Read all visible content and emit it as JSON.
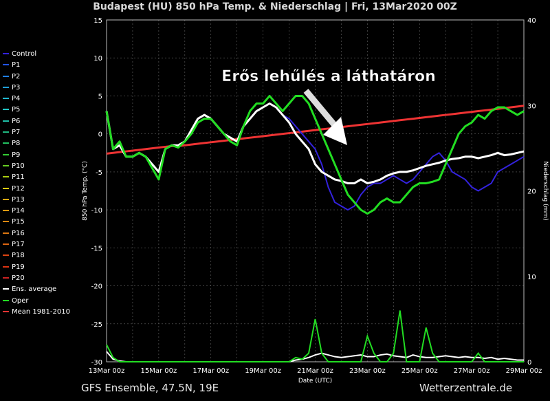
{
  "title": "Budapest  (HU)  850 hPa Temp. & Niederschlag | Fri, 13Mar2020 00Z",
  "footer": {
    "left": "GFS Ensemble, 47.5N, 19E",
    "right": "Wetterzentrale.de"
  },
  "legend": [
    {
      "label": "Control",
      "color": "#3322dd"
    },
    {
      "label": "P1",
      "color": "#2255ee"
    },
    {
      "label": "P2",
      "color": "#1f7fe8"
    },
    {
      "label": "P3",
      "color": "#1f9fd8"
    },
    {
      "label": "P4",
      "color": "#20b8d0"
    },
    {
      "label": "P5",
      "color": "#22c8c8"
    },
    {
      "label": "P6",
      "color": "#1fc0a8"
    },
    {
      "label": "P7",
      "color": "#1fb880"
    },
    {
      "label": "P8",
      "color": "#22c060"
    },
    {
      "label": "P9",
      "color": "#33cc33"
    },
    {
      "label": "P10",
      "color": "#66cc22"
    },
    {
      "label": "P11",
      "color": "#aacc11"
    },
    {
      "label": "P12",
      "color": "#ddcc11"
    },
    {
      "label": "P13",
      "color": "#ddaa11"
    },
    {
      "label": "P14",
      "color": "#dd9911"
    },
    {
      "label": "P15",
      "color": "#dd8811"
    },
    {
      "label": "P16",
      "color": "#dd7711"
    },
    {
      "label": "P17",
      "color": "#dd6611"
    },
    {
      "label": "P18",
      "color": "#dd4411"
    },
    {
      "label": "P19",
      "color": "#dd3311"
    },
    {
      "label": "P20",
      "color": "#cc2222"
    },
    {
      "label": "Ens. average",
      "color": "#ffffff"
    },
    {
      "label": "Oper",
      "color": "#22dd22"
    },
    {
      "label": "Mean 1981-2010",
      "color": "#ee3333"
    }
  ],
  "chart_data": {
    "type": "line",
    "annotation": "Erős lehűlés a láthatáron",
    "xlabel": "Date (UTC)",
    "ylabel": "850 hPa Temp. (°C)",
    "y2label": "Niederschlag (mm)",
    "x_ticks": [
      "13Mar 00z",
      "15Mar 00z",
      "17Mar 00z",
      "19Mar 00z",
      "21Mar 00z",
      "23Mar 00z",
      "25Mar 00z",
      "27Mar 00z",
      "29Mar 00z"
    ],
    "x_range_days": [
      0,
      16
    ],
    "ylim": [
      -30,
      15
    ],
    "y_ticks": [
      15,
      10,
      5,
      0,
      -5,
      -10,
      -15,
      -20,
      -25,
      -30
    ],
    "y2lim": [
      0,
      40
    ],
    "y2_ticks": [
      40,
      30,
      20,
      10,
      0
    ],
    "grid": true,
    "legend_position": "left",
    "x_days": [
      0,
      0.25,
      0.5,
      0.75,
      1,
      1.25,
      1.5,
      1.75,
      2,
      2.25,
      2.5,
      2.75,
      3,
      3.25,
      3.5,
      3.75,
      4,
      4.25,
      4.5,
      4.75,
      5,
      5.25,
      5.5,
      5.75,
      6,
      6.25,
      6.5,
      6.75,
      7,
      7.25,
      7.5,
      7.75,
      8,
      8.25,
      8.5,
      8.75,
      9,
      9.25,
      9.5,
      9.75,
      10,
      10.25,
      10.5,
      10.75,
      11,
      11.25,
      11.5,
      11.75,
      12,
      12.25,
      12.5,
      12.75,
      13,
      13.25,
      13.5,
      13.75,
      14,
      14.25,
      14.5,
      14.75,
      15,
      15.25,
      15.5,
      15.75,
      16
    ],
    "series": [
      {
        "name": "Ens. average",
        "values": [
          3,
          -2,
          -1.5,
          -3,
          -3,
          -2.5,
          -3,
          -4,
          -5,
          -2,
          -1.5,
          -1.5,
          -1,
          0.5,
          2,
          2.5,
          2,
          1,
          0,
          -0.5,
          -1,
          1,
          2,
          3,
          3.5,
          4,
          3.5,
          2.5,
          1.5,
          0,
          -1,
          -2,
          -4,
          -5,
          -5.5,
          -6,
          -6.2,
          -6.5,
          -6.5,
          -6,
          -6.5,
          -6.3,
          -6,
          -5.5,
          -5.2,
          -5,
          -5,
          -4.8,
          -4.5,
          -4.2,
          -4,
          -3.8,
          -3.5,
          -3.3,
          -3.2,
          -3,
          -3,
          -3.2,
          -3,
          -2.8,
          -2.5,
          -2.8,
          -2.7,
          -2.5,
          -2.3
        ]
      },
      {
        "name": "Oper",
        "values": [
          3,
          -2,
          -1,
          -3,
          -3,
          -2.5,
          -3,
          -4.5,
          -6,
          -2,
          -1.5,
          -1.8,
          -1,
          0,
          1.5,
          2,
          2,
          1,
          0,
          -1,
          -1.5,
          1,
          3,
          4,
          4,
          5,
          4,
          3,
          4,
          5,
          5,
          4,
          2,
          0,
          -2,
          -4,
          -6,
          -8,
          -9,
          -10,
          -10.5,
          -10,
          -9,
          -8.5,
          -9,
          -9,
          -8,
          -7,
          -6.5,
          -6.5,
          -6.3,
          -6,
          -4,
          -2,
          0,
          1,
          1.5,
          2.5,
          2,
          3,
          3.5,
          3.5,
          3,
          2.5,
          3
        ]
      },
      {
        "name": "Control",
        "values": [
          3,
          -2,
          -1.5,
          -3,
          -3,
          -2.5,
          -3,
          -4,
          -5,
          -2,
          -1.5,
          -1.5,
          -1,
          0.5,
          2,
          2.5,
          2,
          1,
          0,
          -0.5,
          -1,
          1,
          2,
          3,
          3.5,
          4,
          3.5,
          2.5,
          2,
          1,
          0,
          -1,
          -2,
          -4,
          -7,
          -9,
          -9.5,
          -10,
          -9.5,
          -8,
          -7,
          -6.5,
          -6.5,
          -6,
          -5.5,
          -6,
          -6.5,
          -6,
          -5,
          -4,
          -3,
          -2.5,
          -3.5,
          -5,
          -5.5,
          -6,
          -7,
          -7.5,
          -7,
          -6.5,
          -5,
          -4.5,
          -4,
          -3.5,
          -3
        ]
      },
      {
        "name": "Mean 1981-2010",
        "values": [
          -2.6,
          -2.5,
          -2.4,
          -2.3,
          -2.2,
          -2.1,
          -2.0,
          -1.9,
          -1.8,
          -1.7,
          -1.6,
          -1.6,
          -1.5,
          -1.4,
          -1.3,
          -1.2,
          -1.1,
          -1.0,
          -0.9,
          -0.8,
          -0.7,
          -0.6,
          -0.5,
          -0.4,
          -0.3,
          -0.2,
          -0.1,
          0,
          0.1,
          0.2,
          0.3,
          0.4,
          0.5,
          0.6,
          0.7,
          0.8,
          0.9,
          1.0,
          1.1,
          1.2,
          1.3,
          1.4,
          1.5,
          1.6,
          1.7,
          1.8,
          1.9,
          2.0,
          2.1,
          2.2,
          2.3,
          2.4,
          2.5,
          2.6,
          2.7,
          2.8,
          2.9,
          3.0,
          3.1,
          3.2,
          3.3,
          3.4,
          3.5,
          3.6,
          3.7
        ]
      }
    ],
    "precip_series": [
      {
        "name": "Ens. average",
        "values": [
          1.2,
          0.3,
          0.1,
          0,
          0,
          0,
          0,
          0,
          0,
          0,
          0,
          0,
          0,
          0,
          0,
          0,
          0,
          0,
          0,
          0,
          0,
          0,
          0,
          0,
          0,
          0,
          0,
          0,
          0,
          0.2,
          0.3,
          0.5,
          0.8,
          1,
          0.8,
          0.6,
          0.5,
          0.6,
          0.7,
          0.8,
          0.6,
          0.6,
          0.8,
          0.9,
          0.7,
          0.6,
          0.5,
          0.8,
          0.6,
          0.5,
          0.5,
          0.6,
          0.7,
          0.6,
          0.5,
          0.6,
          0.5,
          0.5,
          0.4,
          0.5,
          0.3,
          0.4,
          0.3,
          0.2,
          0.2
        ]
      },
      {
        "name": "Oper",
        "values": [
          2,
          0.5,
          0,
          0,
          0,
          0,
          0,
          0,
          0,
          0,
          0,
          0,
          0,
          0,
          0,
          0,
          0,
          0,
          0,
          0,
          0,
          0,
          0,
          0,
          0,
          0,
          0,
          0,
          0,
          0.5,
          0.3,
          1,
          5,
          1,
          0,
          0,
          0,
          0,
          0,
          0,
          3,
          1,
          0,
          0,
          1,
          6,
          0,
          0,
          0,
          4,
          1,
          0,
          0,
          0,
          0,
          0,
          0,
          1,
          0,
          0,
          0,
          0,
          0,
          0,
          0
        ]
      }
    ]
  }
}
